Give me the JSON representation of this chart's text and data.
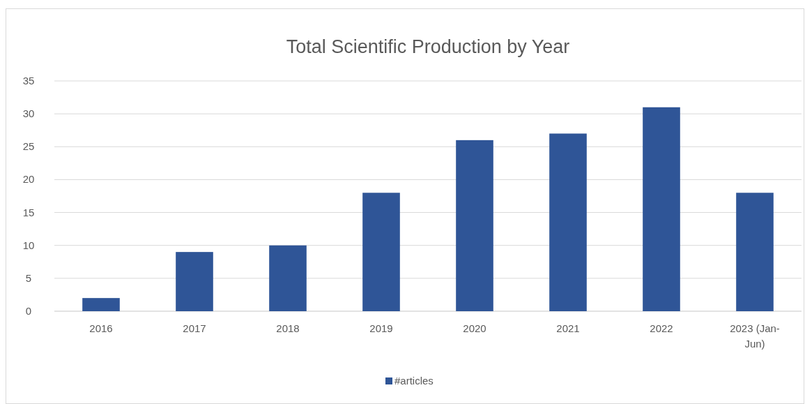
{
  "chart_data": {
    "type": "bar",
    "title": "Total Scientific Production by Year",
    "categories": [
      "2016",
      "2017",
      "2018",
      "2019",
      "2020",
      "2021",
      "2022",
      "2023 (Jan-Jun)"
    ],
    "series": [
      {
        "name": "#articles",
        "color": "#2f5597",
        "values": [
          2,
          9,
          10,
          18,
          26,
          27,
          31,
          18
        ]
      }
    ],
    "ylim": [
      0,
      35
    ],
    "yticks": [
      0,
      5,
      10,
      15,
      20,
      25,
      30,
      35
    ],
    "grid": "y",
    "legend": "bottom"
  }
}
